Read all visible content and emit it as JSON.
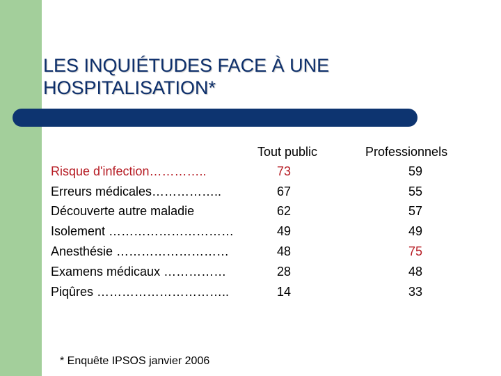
{
  "title": {
    "line1": "LES INQUIÉTUDES FACE À UNE",
    "line2": "HOSPITALISATION*"
  },
  "table": {
    "headers": {
      "public": "Tout public",
      "pro": "Professionnels"
    },
    "rows": [
      {
        "label": "Risque d'infection…………..",
        "public": "73",
        "pro": "59"
      },
      {
        "label": "Erreurs médicales……………..",
        "public": "67",
        "pro": "55"
      },
      {
        "label": "Découverte autre maladie",
        "public": "62",
        "pro": "57"
      },
      {
        "label": "Isolement …………………………",
        "public": "49",
        "pro": "49"
      },
      {
        "label": "Anesthésie ………………………",
        "public": "48",
        "pro": "75"
      },
      {
        "label": "Examens médicaux ……………",
        "public": "28",
        "pro": "48"
      },
      {
        "label": "Piqûres …………………………..",
        "public": "14",
        "pro": "33"
      }
    ]
  },
  "footnote": "* Enquête IPSOS janvier 2006",
  "colors": {
    "accent_green": "#a3cf9b",
    "title_blue": "#0d2f6b",
    "bar_blue": "#0d3470",
    "highlight_red": "#b61c24"
  }
}
